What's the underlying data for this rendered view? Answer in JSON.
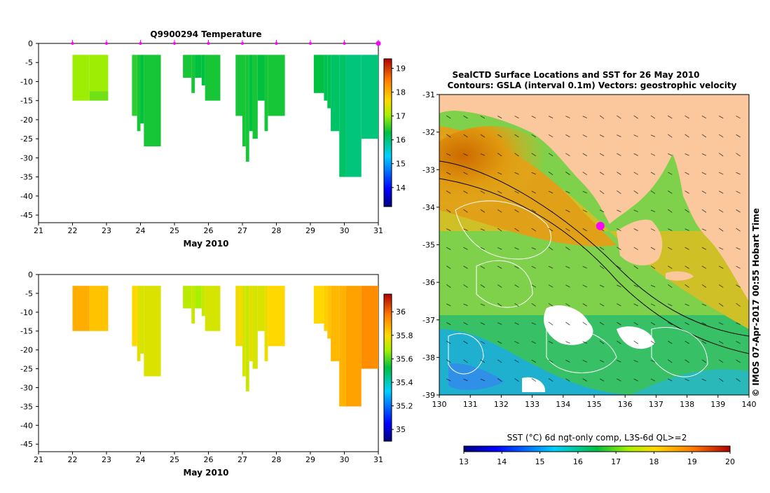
{
  "chart_data": [
    {
      "type": "heatmap",
      "title": "Q9900294  Temperature",
      "xlabel": "May 2010",
      "ylabel": "",
      "xlim": [
        21,
        31
      ],
      "ylim": [
        -47,
        0
      ],
      "x_ticks": [
        "21",
        "22",
        "23",
        "24",
        "25",
        "26",
        "27",
        "28",
        "29",
        "30",
        "31"
      ],
      "y_ticks": [
        "0",
        "-5",
        "-10",
        "-15",
        "-20",
        "-25",
        "-30",
        "-35",
        "-40",
        "-45"
      ],
      "profile_times": [
        22.0,
        23.0,
        24.0,
        25.0,
        26.0,
        27.0,
        28.0,
        29.0,
        30.0,
        31.0
      ],
      "colorbar": {
        "min": 13.2,
        "max": 19.4,
        "ticks": [
          "14",
          "15",
          "16",
          "17",
          "18",
          "19"
        ]
      },
      "cells": [
        {
          "x0": 22.0,
          "x1": 22.5,
          "top": -3,
          "bottom": -15,
          "value": 17.0
        },
        {
          "x0": 22.5,
          "x1": 23.05,
          "top": -3,
          "bottom": -12.5,
          "value": 17.0
        },
        {
          "x0": 22.5,
          "x1": 23.05,
          "top": -12.5,
          "bottom": -15,
          "value": 16.8
        },
        {
          "x0": 23.75,
          "x1": 23.9,
          "top": -3,
          "bottom": -19,
          "value": 16.5
        },
        {
          "x0": 23.9,
          "x1": 24.0,
          "top": -3,
          "bottom": -23,
          "value": 16.4
        },
        {
          "x0": 24.0,
          "x1": 24.1,
          "top": -3,
          "bottom": -21,
          "value": 16.3
        },
        {
          "x0": 24.1,
          "x1": 24.6,
          "top": -3,
          "bottom": -27,
          "value": 16.4
        },
        {
          "x0": 25.25,
          "x1": 25.5,
          "top": -3,
          "bottom": -9,
          "value": 16.4
        },
        {
          "x0": 25.5,
          "x1": 25.6,
          "top": -3,
          "bottom": -13,
          "value": 16.4
        },
        {
          "x0": 25.6,
          "x1": 25.8,
          "top": -3,
          "bottom": -9,
          "value": 16.3
        },
        {
          "x0": 25.8,
          "x1": 25.9,
          "top": -3,
          "bottom": -11,
          "value": 16.3
        },
        {
          "x0": 25.9,
          "x1": 26.35,
          "top": -3,
          "bottom": -15,
          "value": 16.4
        },
        {
          "x0": 26.8,
          "x1": 27.0,
          "top": -3,
          "bottom": -19,
          "value": 16.4
        },
        {
          "x0": 27.0,
          "x1": 27.1,
          "top": -3,
          "bottom": -27,
          "value": 16.4
        },
        {
          "x0": 27.1,
          "x1": 27.2,
          "top": -3,
          "bottom": -31,
          "value": 16.4
        },
        {
          "x0": 27.2,
          "x1": 27.3,
          "top": -3,
          "bottom": -23,
          "value": 16.3
        },
        {
          "x0": 27.3,
          "x1": 27.45,
          "top": -3,
          "bottom": -25,
          "value": 16.4
        },
        {
          "x0": 27.45,
          "x1": 27.65,
          "top": -3,
          "bottom": -15,
          "value": 16.3
        },
        {
          "x0": 27.65,
          "x1": 27.75,
          "top": -3,
          "bottom": -23,
          "value": 16.4
        },
        {
          "x0": 27.75,
          "x1": 28.25,
          "top": -3,
          "bottom": -19,
          "value": 16.4
        },
        {
          "x0": 29.1,
          "x1": 29.4,
          "top": -3,
          "bottom": -13,
          "value": 16.3
        },
        {
          "x0": 29.4,
          "x1": 29.5,
          "top": -3,
          "bottom": -15,
          "value": 16.2
        },
        {
          "x0": 29.5,
          "x1": 29.6,
          "top": -3,
          "bottom": -17,
          "value": 16.2
        },
        {
          "x0": 29.6,
          "x1": 29.85,
          "top": -3,
          "bottom": -23,
          "value": 16.1
        },
        {
          "x0": 29.85,
          "x1": 30.05,
          "top": -3,
          "bottom": -35,
          "value": 16.1
        },
        {
          "x0": 30.05,
          "x1": 30.5,
          "top": -3,
          "bottom": -35,
          "value": 16.0
        },
        {
          "x0": 30.5,
          "x1": 31.0,
          "top": -3,
          "bottom": -25,
          "value": 16.0
        }
      ]
    },
    {
      "type": "heatmap",
      "title": "",
      "xlabel": "May 2010",
      "ylabel": "",
      "xlim": [
        21,
        31
      ],
      "ylim": [
        -47,
        0
      ],
      "x_ticks": [
        "21",
        "22",
        "23",
        "24",
        "25",
        "26",
        "27",
        "28",
        "29",
        "30",
        "31"
      ],
      "y_ticks": [
        "0",
        "-5",
        "-10",
        "-15",
        "-20",
        "-25",
        "-30",
        "-35",
        "-40",
        "-45"
      ],
      "colorbar": {
        "min": 34.9,
        "max": 36.15,
        "ticks": [
          "35",
          "35.2",
          "35.4",
          "35.6",
          "35.8",
          "36"
        ]
      },
      "cells": [
        {
          "x0": 22.0,
          "x1": 22.5,
          "top": -3,
          "bottom": -15,
          "value": 35.88
        },
        {
          "x0": 22.5,
          "x1": 23.05,
          "top": -3,
          "bottom": -15,
          "value": 35.84
        },
        {
          "x0": 23.75,
          "x1": 23.9,
          "top": -3,
          "bottom": -19,
          "value": 35.8
        },
        {
          "x0": 23.9,
          "x1": 24.0,
          "top": -3,
          "bottom": -23,
          "value": 35.76
        },
        {
          "x0": 24.0,
          "x1": 24.1,
          "top": -3,
          "bottom": -21,
          "value": 35.74
        },
        {
          "x0": 24.1,
          "x1": 24.6,
          "top": -3,
          "bottom": -27,
          "value": 35.75
        },
        {
          "x0": 25.25,
          "x1": 25.5,
          "top": -3,
          "bottom": -9,
          "value": 35.7
        },
        {
          "x0": 25.5,
          "x1": 25.6,
          "top": -3,
          "bottom": -13,
          "value": 35.72
        },
        {
          "x0": 25.6,
          "x1": 25.8,
          "top": -3,
          "bottom": -9,
          "value": 35.68
        },
        {
          "x0": 25.8,
          "x1": 25.9,
          "top": -3,
          "bottom": -11,
          "value": 35.72
        },
        {
          "x0": 25.9,
          "x1": 26.35,
          "top": -3,
          "bottom": -15,
          "value": 35.74
        },
        {
          "x0": 26.8,
          "x1": 27.0,
          "top": -3,
          "bottom": -19,
          "value": 35.78
        },
        {
          "x0": 27.0,
          "x1": 27.1,
          "top": -3,
          "bottom": -27,
          "value": 35.74
        },
        {
          "x0": 27.1,
          "x1": 27.2,
          "top": -3,
          "bottom": -31,
          "value": 35.72
        },
        {
          "x0": 27.2,
          "x1": 27.3,
          "top": -3,
          "bottom": -23,
          "value": 35.76
        },
        {
          "x0": 27.3,
          "x1": 27.45,
          "top": -3,
          "bottom": -25,
          "value": 35.74
        },
        {
          "x0": 27.45,
          "x1": 27.65,
          "top": -3,
          "bottom": -15,
          "value": 35.75
        },
        {
          "x0": 27.65,
          "x1": 27.75,
          "top": -3,
          "bottom": -23,
          "value": 35.77
        },
        {
          "x0": 27.75,
          "x1": 28.25,
          "top": -3,
          "bottom": -19,
          "value": 35.8
        },
        {
          "x0": 29.1,
          "x1": 29.4,
          "top": -3,
          "bottom": -13,
          "value": 35.8
        },
        {
          "x0": 29.4,
          "x1": 29.5,
          "top": -3,
          "bottom": -15,
          "value": 35.82
        },
        {
          "x0": 29.5,
          "x1": 29.6,
          "top": -3,
          "bottom": -17,
          "value": 35.84
        },
        {
          "x0": 29.6,
          "x1": 29.85,
          "top": -3,
          "bottom": -23,
          "value": 35.86
        },
        {
          "x0": 29.85,
          "x1": 30.05,
          "top": -3,
          "bottom": -35,
          "value": 35.87
        },
        {
          "x0": 30.05,
          "x1": 30.5,
          "top": -3,
          "bottom": -35,
          "value": 35.9
        },
        {
          "x0": 30.5,
          "x1": 31.0,
          "top": -3,
          "bottom": -25,
          "value": 35.94
        }
      ]
    },
    {
      "type": "map",
      "title": "SealCTD Surface Locations and SST for 26 May 2010",
      "subtitle": "Contours: GSLA (interval 0.1m) Vectors: geostrophic velocity",
      "xlim": [
        130,
        140
      ],
      "ylim": [
        -39,
        -31
      ],
      "x_ticks": [
        "130",
        "131",
        "132",
        "133",
        "134",
        "135",
        "136",
        "137",
        "138",
        "139",
        "140"
      ],
      "y_ticks": [
        "-31",
        "-32",
        "-33",
        "-34",
        "-35",
        "-36",
        "-37",
        "-38",
        "-39"
      ],
      "side_label": "© IMOS 07-Apr-2017 00:55 Hobart Time",
      "seal_location": {
        "lon": 135.2,
        "lat": -34.5
      },
      "colorbar": {
        "label": "SST (°C) 6d ngt-only comp, L3S-6d QL>=2",
        "min": 13,
        "max": 20,
        "ticks": [
          "13",
          "14",
          "15",
          "16",
          "17",
          "18",
          "19",
          "20"
        ]
      }
    }
  ]
}
